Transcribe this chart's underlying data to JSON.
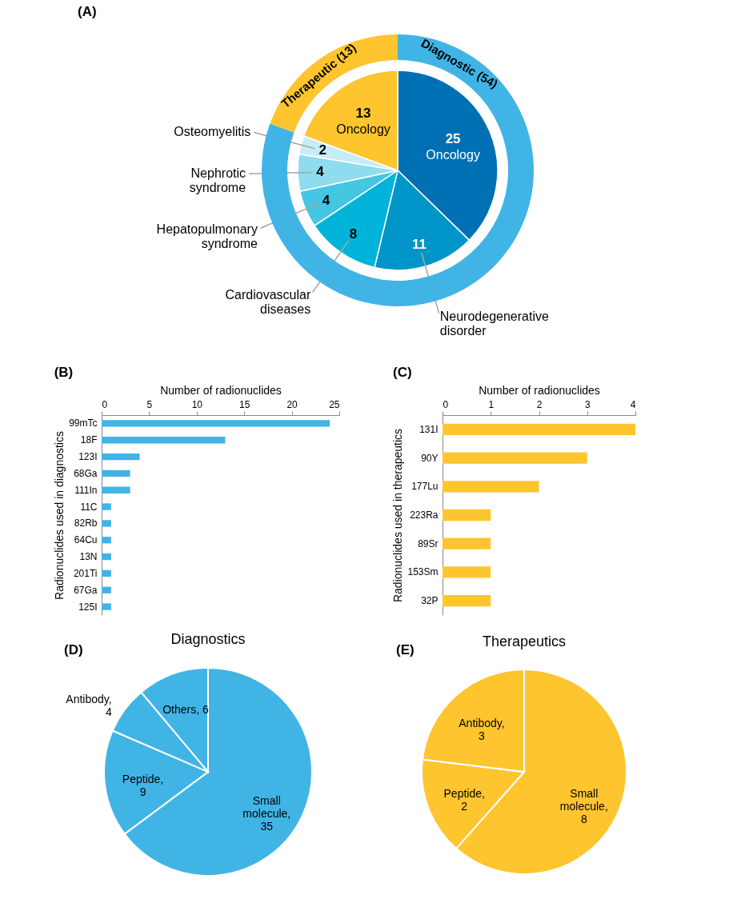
{
  "chart_data": [
    {
      "type": "pie",
      "title": "(A)",
      "categories": [
        "Oncology",
        "Neurodegenerative disorder",
        "Cardiovascular diseases",
        "Hepatopulmonary syndrome",
        "Nephrotic syndrome",
        "Osteomyelitis",
        "Oncology"
      ],
      "values": [
        25,
        11,
        8,
        4,
        4,
        2,
        13
      ],
      "colors": [
        "#0070b4",
        "#0095c8",
        "#00b3d8",
        "#45c6e2",
        "#8fdcee",
        "#c6ecf7",
        "#ffc52f"
      ],
      "data_labels": true
    },
    {
      "type": "donut",
      "categories": [
        "Diagnostic (54)",
        "Therapeutic (13)"
      ],
      "values": [
        54,
        13
      ],
      "colors": [
        "#41b4e6",
        "#ffc52f"
      ]
    },
    {
      "type": "bar",
      "orientation": "horizontal",
      "title": "(B)",
      "xlabel": "Number of radionuclides",
      "ylabel": "Radionuclides used in diagnostics",
      "categories": [
        "99mTc",
        "18F",
        "123I",
        "68Ga",
        "111In",
        "11C",
        "82Rb",
        "64Cu",
        "13N",
        "201Ti",
        "67Ga",
        "125I"
      ],
      "values": [
        24,
        13,
        4,
        3,
        3,
        1,
        1,
        1,
        1,
        1,
        1,
        1
      ],
      "color": "#41b4e6",
      "xlim": [
        0,
        25
      ],
      "xticks": [
        0,
        5,
        10,
        15,
        20,
        25
      ]
    },
    {
      "type": "bar",
      "orientation": "horizontal",
      "title": "(C)",
      "xlabel": "Number of radionuclides",
      "ylabel": "Radionuclides used in therapeutics",
      "categories": [
        "131I",
        "90Y",
        "177Lu",
        "223Ra",
        "89Sr",
        "153Sm",
        "32P"
      ],
      "values": [
        4,
        3,
        2,
        1,
        1,
        1,
        1
      ],
      "color": "#ffc52f",
      "xlim": [
        0,
        4
      ],
      "xticks": [
        0,
        1,
        2,
        3,
        4
      ]
    },
    {
      "type": "pie",
      "title": "Diagnostics",
      "annotations": [
        "(D)"
      ],
      "categories": [
        "Small molecule, 35",
        "Peptide, 9",
        "Antibody, 4",
        "Others, 6"
      ],
      "values": [
        35,
        9,
        4,
        6
      ],
      "colors": [
        "#41b4e6",
        "#41b4e6",
        "#41b4e6",
        "#41b4e6"
      ]
    },
    {
      "type": "pie",
      "title": "Therapeutics",
      "annotations": [
        "(E)"
      ],
      "categories": [
        "Small molecule, 8",
        "Peptide, 2",
        "Antibody, 3"
      ],
      "values": [
        8,
        2,
        3
      ],
      "colors": [
        "#ffc52f",
        "#ffc52f",
        "#ffc52f"
      ]
    }
  ]
}
